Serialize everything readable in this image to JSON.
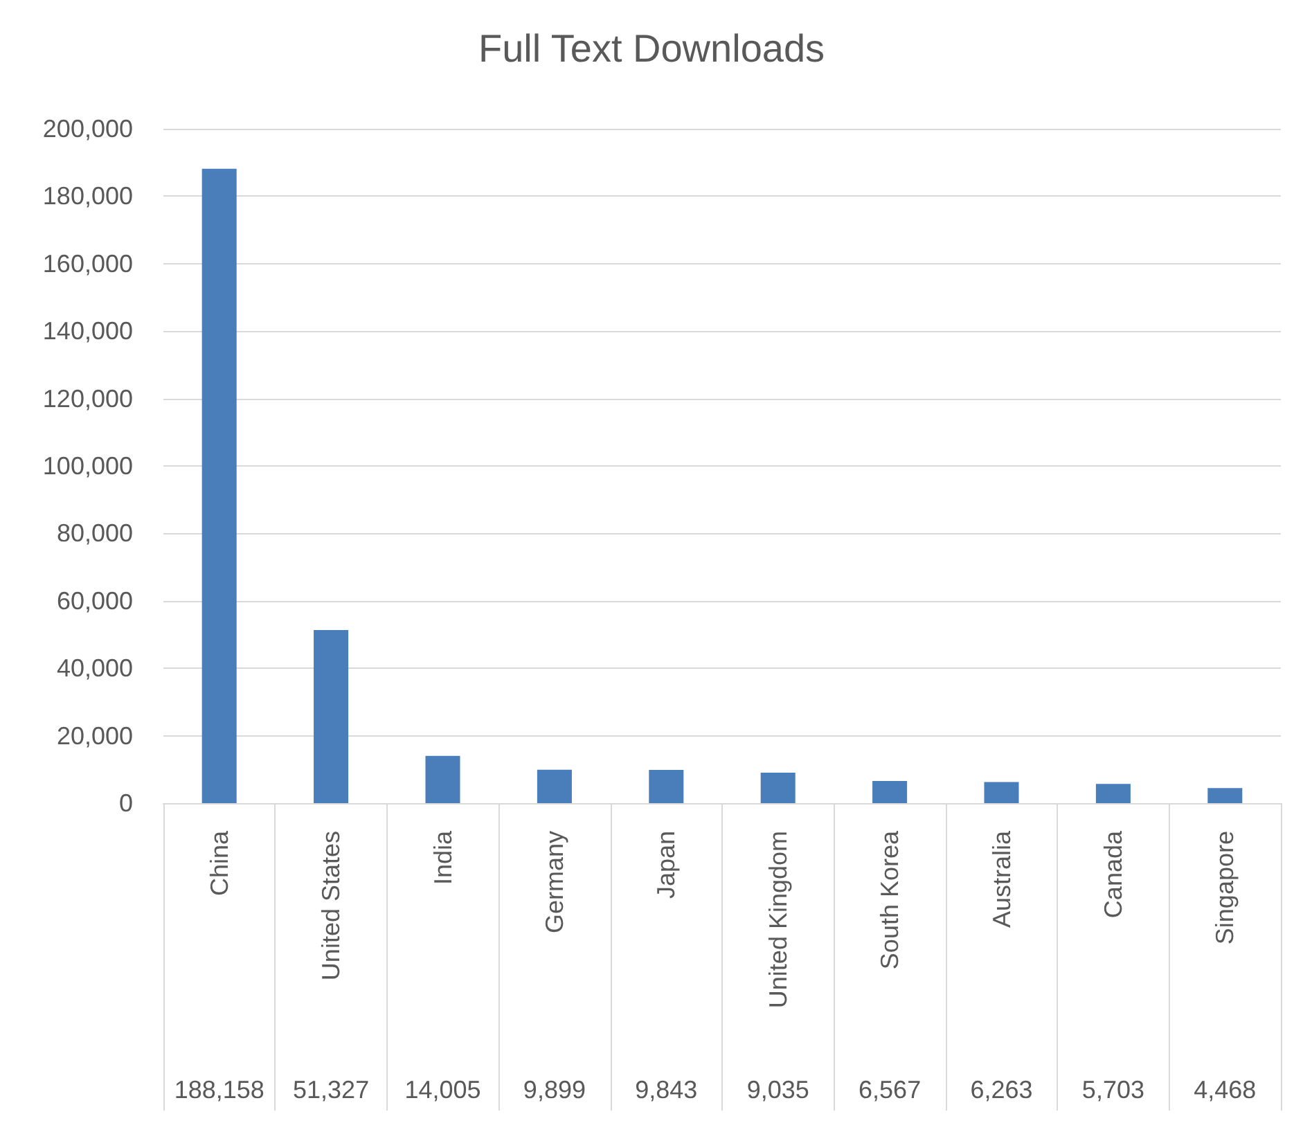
{
  "chart_data": {
    "type": "bar",
    "title": "Full Text Downloads",
    "categories": [
      "China",
      "United States",
      "India",
      "Germany",
      "Japan",
      "United Kingdom",
      "South Korea",
      "Australia",
      "Canada",
      "Singapore"
    ],
    "values": [
      188158,
      51327,
      14005,
      9899,
      9843,
      9035,
      6567,
      6263,
      5703,
      4468
    ],
    "value_labels": [
      "188,158",
      "51,327",
      "14,005",
      "9,899",
      "9,843",
      "9,035",
      "6,567",
      "6,263",
      "5,703",
      "4,468"
    ],
    "color": "#4a7ebb",
    "ylim": [
      0,
      200000
    ],
    "yticks": [
      0,
      {
        "value": 20000,
        "label": "20,000"
      },
      {
        "value": 40000,
        "label": "40,000"
      },
      {
        "value": 60000,
        "label": "60,000"
      },
      {
        "value": 80000,
        "label": "80,000"
      },
      {
        "value": 100000,
        "label": "100,000"
      },
      {
        "value": 120000,
        "label": "120,000"
      },
      {
        "value": 140000,
        "label": "140,000"
      },
      {
        "value": 160000,
        "label": "160,000"
      },
      {
        "value": 180000,
        "label": "180,000"
      },
      {
        "value": 200000,
        "label": "200,000"
      }
    ],
    "grid": "y"
  }
}
